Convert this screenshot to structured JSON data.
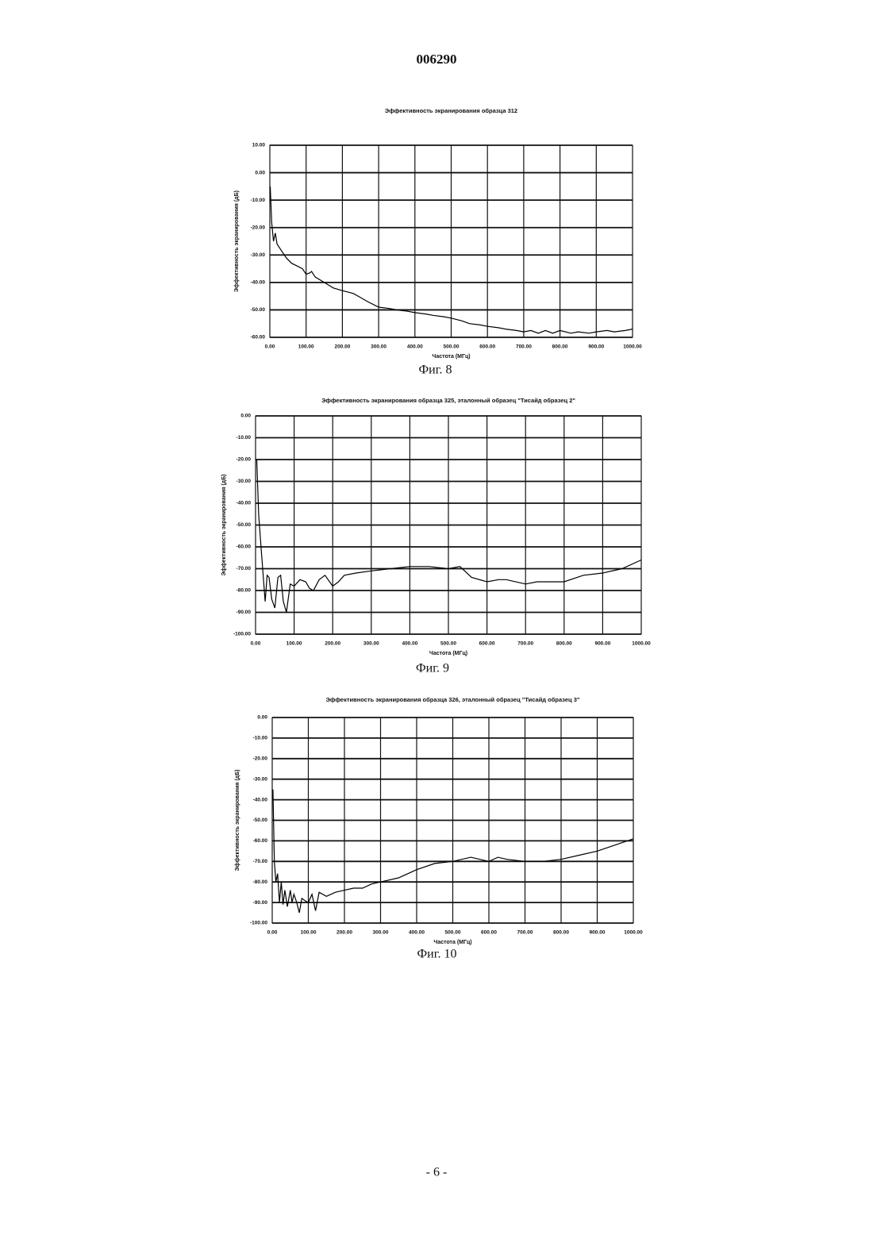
{
  "header": "006290",
  "footer": "- 6 -",
  "chart_data": [
    {
      "type": "line",
      "title": "Эффективность экранирования образца 312",
      "ylabel": "Эффективность экранирования (дБ)",
      "xlabel": "Частота (МГц)",
      "caption": "Фиг. 8",
      "xlim": [
        0,
        1000
      ],
      "ylim": [
        -60,
        10
      ],
      "xticks": [
        {
          "value": 0,
          "label": "0.00"
        },
        {
          "value": 100,
          "label": "100.00"
        },
        {
          "value": 200,
          "label": "200.00"
        },
        {
          "value": 300,
          "label": "300.00"
        },
        {
          "value": 400,
          "label": "400.00"
        },
        {
          "value": 500,
          "label": "500.00"
        },
        {
          "value": 600,
          "label": "600.00"
        },
        {
          "value": 700,
          "label": "700.00"
        },
        {
          "value": 800,
          "label": "800.00"
        },
        {
          "value": 900,
          "label": "900.00"
        },
        {
          "value": 1000,
          "label": "1000.00"
        }
      ],
      "yticks": [
        {
          "value": 10,
          "label": "10.00"
        },
        {
          "value": 0,
          "label": "0.00"
        },
        {
          "value": -10,
          "label": "-10.00"
        },
        {
          "value": -20,
          "label": "-20.00"
        },
        {
          "value": -30,
          "label": "-30.00"
        },
        {
          "value": -40,
          "label": "-40.00"
        },
        {
          "value": -50,
          "label": "-50.00"
        },
        {
          "value": -60,
          "label": "-60.00"
        }
      ],
      "series": [
        {
          "color": "#000000",
          "x": [
            1,
            5,
            10,
            15,
            20,
            30,
            45,
            60,
            75,
            90,
            100,
            110,
            115,
            125,
            150,
            175,
            200,
            230,
            250,
            270,
            300,
            330,
            350,
            380,
            400,
            430,
            450,
            480,
            500,
            530,
            550,
            580,
            600,
            630,
            650,
            680,
            700,
            720,
            740,
            760,
            780,
            800,
            830,
            850,
            880,
            900,
            930,
            950,
            980,
            1000
          ],
          "values": [
            -5,
            -18,
            -25,
            -22,
            -26,
            -28,
            -31,
            -33,
            -34,
            -35,
            -37,
            -36.5,
            -36,
            -38,
            -40,
            -42,
            -43,
            -44,
            -45.5,
            -47,
            -49,
            -49.5,
            -50,
            -50.5,
            -51,
            -51.5,
            -52,
            -52.5,
            -53,
            -54,
            -55,
            -55.5,
            -56,
            -56.5,
            -57,
            -57.5,
            -58,
            -57.5,
            -58.5,
            -57.5,
            -58.5,
            -57.5,
            -58.5,
            -58,
            -58.5,
            -58,
            -57.5,
            -58,
            -57.5,
            -57
          ]
        }
      ]
    },
    {
      "type": "line",
      "title": "Эффективность экранирования образца 325, эталонный образец \"Тисайд образец 2\"",
      "ylabel": "Эффективность экранирования (дБ)",
      "xlabel": "Частота (МГц)",
      "caption": "Фиг. 9",
      "xlim": [
        0,
        1000
      ],
      "ylim": [
        -100,
        0
      ],
      "xticks": [
        {
          "value": 0,
          "label": "0.00"
        },
        {
          "value": 100,
          "label": "100.00"
        },
        {
          "value": 200,
          "label": "200.00"
        },
        {
          "value": 300,
          "label": "300.00"
        },
        {
          "value": 400,
          "label": "400.00"
        },
        {
          "value": 500,
          "label": "500.00"
        },
        {
          "value": 600,
          "label": "600.00"
        },
        {
          "value": 700,
          "label": "700.00"
        },
        {
          "value": 800,
          "label": "800.00"
        },
        {
          "value": 900,
          "label": "900.00"
        },
        {
          "value": 1000,
          "label": "1000.00"
        }
      ],
      "yticks": [
        {
          "value": 0,
          "label": "0.00"
        },
        {
          "value": -10,
          "label": "-10.00"
        },
        {
          "value": -20,
          "label": "-20.00"
        },
        {
          "value": -30,
          "label": "-30.00"
        },
        {
          "value": -40,
          "label": "-40.00"
        },
        {
          "value": -50,
          "label": "-50.00"
        },
        {
          "value": -60,
          "label": "-60.00"
        },
        {
          "value": -70,
          "label": "-70.00"
        },
        {
          "value": -80,
          "label": "-80.00"
        },
        {
          "value": -90,
          "label": "-90.00"
        },
        {
          "value": -100,
          "label": "-100.00"
        }
      ],
      "series": [
        {
          "color": "#000000",
          "x": [
            3,
            8,
            15,
            25,
            30,
            35,
            42,
            50,
            58,
            65,
            72,
            80,
            90,
            100,
            115,
            130,
            140,
            150,
            165,
            180,
            200,
            215,
            230,
            260,
            300,
            350,
            400,
            450,
            500,
            530,
            560,
            600,
            630,
            650,
            700,
            730,
            750,
            800,
            850,
            900,
            950,
            1000
          ],
          "values": [
            -20,
            -45,
            -62,
            -85,
            -73,
            -74,
            -84,
            -88,
            -74,
            -73,
            -85,
            -90,
            -77,
            -78,
            -75,
            -76,
            -79,
            -80,
            -75,
            -73,
            -78,
            -76,
            -73,
            -72,
            -71,
            -70,
            -69,
            -69,
            -70,
            -69,
            -74,
            -76,
            -75,
            -75,
            -77,
            -76,
            -76,
            -76,
            -73,
            -72,
            -70,
            -66
          ]
        }
      ]
    },
    {
      "type": "line",
      "title": "Эффективность экранирования образца 326, эталонный образец \"Тисайд образец 3\"",
      "ylabel": "Эффективность экранирования (дБ)",
      "xlabel": "Частота (МГц)",
      "caption": "Фиг. 10",
      "xlim": [
        0,
        1000
      ],
      "ylim": [
        -100,
        0
      ],
      "xticks": [
        {
          "value": 0,
          "label": "0.00"
        },
        {
          "value": 100,
          "label": "100.00"
        },
        {
          "value": 200,
          "label": "200.00"
        },
        {
          "value": 300,
          "label": "300.00"
        },
        {
          "value": 400,
          "label": "400.00"
        },
        {
          "value": 500,
          "label": "500.00"
        },
        {
          "value": 600,
          "label": "600.00"
        },
        {
          "value": 700,
          "label": "700.00"
        },
        {
          "value": 800,
          "label": "800.00"
        },
        {
          "value": 900,
          "label": "900.00"
        },
        {
          "value": 1000,
          "label": "1000.00"
        }
      ],
      "yticks": [
        {
          "value": 0,
          "label": "0.00"
        },
        {
          "value": -10,
          "label": "-10.00"
        },
        {
          "value": -20,
          "label": "-20.00"
        },
        {
          "value": -30,
          "label": "-30.00"
        },
        {
          "value": -40,
          "label": "-40.00"
        },
        {
          "value": -50,
          "label": "-50.00"
        },
        {
          "value": -60,
          "label": "-60.00"
        },
        {
          "value": -70,
          "label": "-70.00"
        },
        {
          "value": -80,
          "label": "-80.00"
        },
        {
          "value": -90,
          "label": "-90.00"
        },
        {
          "value": -100,
          "label": "-100.00"
        }
      ],
      "series": [
        {
          "color": "#000000",
          "x": [
            2,
            6,
            10,
            15,
            20,
            25,
            30,
            35,
            42,
            50,
            55,
            60,
            68,
            75,
            82,
            90,
            100,
            110,
            120,
            130,
            150,
            175,
            200,
            225,
            250,
            275,
            300,
            350,
            400,
            450,
            500,
            550,
            575,
            600,
            625,
            650,
            700,
            750,
            800,
            850,
            900,
            950,
            1000
          ],
          "values": [
            -35,
            -70,
            -80,
            -76,
            -90,
            -80,
            -91,
            -84,
            -92,
            -84,
            -90,
            -86,
            -90,
            -95,
            -88,
            -89,
            -90,
            -86,
            -94,
            -85,
            -87,
            -85,
            -84,
            -83,
            -83,
            -81,
            -80,
            -78,
            -74,
            -71,
            -70,
            -68,
            -69,
            -70,
            -68,
            -69,
            -70,
            -70,
            -69,
            -67,
            -65,
            -62,
            -59
          ]
        }
      ]
    }
  ]
}
